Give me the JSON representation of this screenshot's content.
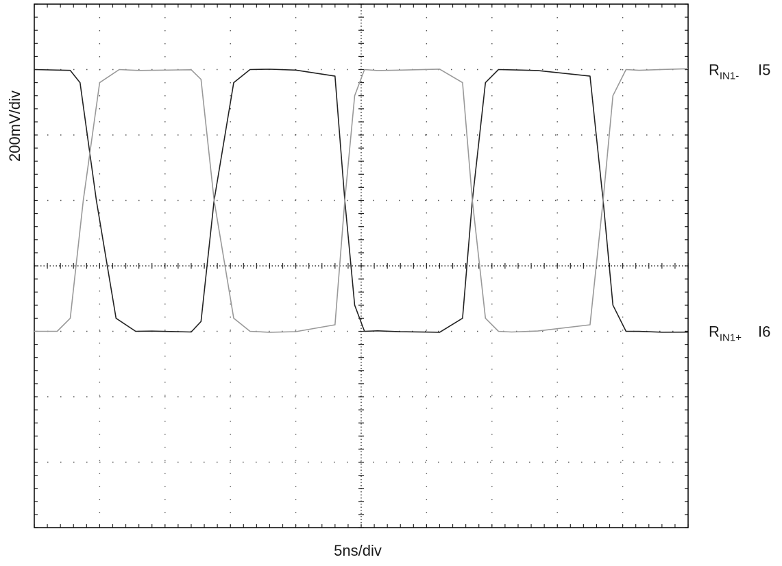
{
  "chart_data": {
    "type": "line",
    "xlabel": "5ns/div",
    "ylabel": "200mV/div",
    "divisions": {
      "x": 10,
      "y": 8
    },
    "xlim": [
      0,
      10
    ],
    "ylim": [
      -4,
      4
    ],
    "grid": "dotted",
    "series": [
      {
        "name": "R_IN1+",
        "label_main": "R",
        "label_sub": "IN1+",
        "marker": "I6",
        "color": "#222222",
        "x": [
          0,
          0.55,
          0.7,
          0.95,
          1.25,
          1.55,
          1.8,
          2.4,
          2.55,
          2.75,
          3.05,
          3.3,
          3.6,
          4.0,
          4.6,
          4.75,
          4.9,
          5.05,
          5.25,
          5.6,
          6.2,
          6.55,
          6.7,
          6.9,
          7.1,
          7.3,
          7.7,
          8.5,
          8.7,
          8.85,
          9.05,
          9.25,
          9.6,
          10.0
        ],
        "y": [
          3.0,
          3.0,
          2.8,
          1.0,
          -0.8,
          -1.0,
          -1.0,
          -1.0,
          -0.85,
          1.0,
          2.8,
          3.0,
          3.0,
          3.0,
          2.9,
          1.0,
          -0.6,
          -1.0,
          -1.0,
          -1.0,
          -1.0,
          -0.8,
          1.0,
          2.8,
          3.0,
          3.0,
          3.0,
          2.9,
          1.0,
          -0.6,
          -1.0,
          -1.0,
          -1.0,
          -1.0
        ]
      },
      {
        "name": "R_IN1-",
        "label_main": "R",
        "label_sub": "IN1-",
        "marker": "I5",
        "color": "#999999",
        "x": [
          0,
          0.35,
          0.55,
          0.75,
          1.0,
          1.3,
          1.6,
          2.4,
          2.55,
          2.75,
          3.05,
          3.3,
          3.6,
          4.0,
          4.6,
          4.75,
          4.9,
          5.05,
          5.25,
          5.6,
          6.2,
          6.55,
          6.7,
          6.9,
          7.1,
          7.3,
          7.7,
          8.5,
          8.7,
          8.85,
          9.05,
          9.25,
          9.6,
          10.0
        ],
        "y": [
          -1.0,
          -1.0,
          -0.8,
          1.0,
          2.8,
          3.0,
          3.0,
          3.0,
          2.85,
          1.0,
          -0.8,
          -1.0,
          -1.0,
          -1.0,
          -0.9,
          1.0,
          2.6,
          3.0,
          3.0,
          3.0,
          3.0,
          2.8,
          1.0,
          -0.8,
          -1.0,
          -1.0,
          -1.0,
          -0.9,
          1.0,
          2.6,
          3.0,
          3.0,
          3.0,
          3.0
        ]
      }
    ]
  }
}
